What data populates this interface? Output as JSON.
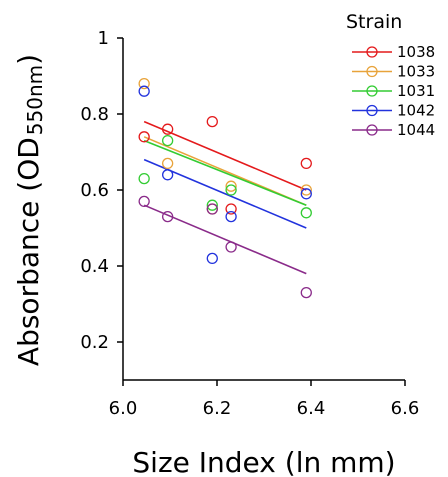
{
  "chart_data": {
    "type": "scatter",
    "xlabel": "Size Index (ln mm)",
    "ylabel_main": "Absorbance (OD",
    "ylabel_sub": "550nm",
    "ylabel_close": ")",
    "xlim": [
      6.0,
      6.6
    ],
    "ylim": [
      0.1,
      1.0
    ],
    "xticks": [
      6.0,
      6.2,
      6.4,
      6.6
    ],
    "xtick_labels": [
      "6.0",
      "6.2",
      "6.4",
      "6.6"
    ],
    "yticks": [
      0.2,
      0.4,
      0.6,
      0.8,
      1.0
    ],
    "ytick_labels": [
      "0.2",
      "0.4",
      "0.6",
      "0.8",
      "1"
    ],
    "grid": false,
    "legend": {
      "title": "Strain",
      "placement": "top-right"
    },
    "series": [
      {
        "name": "1038",
        "color": "#e41a1c",
        "x": [
          6.045,
          6.095,
          6.19,
          6.23,
          6.39
        ],
        "y": [
          0.74,
          0.76,
          0.78,
          0.55,
          0.67
        ],
        "fit": [
          [
            6.045,
            0.78
          ],
          [
            6.39,
            0.6
          ]
        ]
      },
      {
        "name": "1033",
        "color": "#e8a33a",
        "x": [
          6.045,
          6.095,
          6.19,
          6.23,
          6.39
        ],
        "y": [
          0.88,
          0.67,
          0.55,
          0.61,
          0.6
        ],
        "fit": [
          [
            6.045,
            0.74
          ],
          [
            6.39,
            0.56
          ]
        ]
      },
      {
        "name": "1031",
        "color": "#33cc33",
        "x": [
          6.045,
          6.095,
          6.19,
          6.23,
          6.39
        ],
        "y": [
          0.63,
          0.73,
          0.56,
          0.6,
          0.54
        ],
        "fit": [
          [
            6.045,
            0.73
          ],
          [
            6.39,
            0.56
          ]
        ]
      },
      {
        "name": "1042",
        "color": "#2233dd",
        "x": [
          6.045,
          6.095,
          6.19,
          6.23,
          6.39
        ],
        "y": [
          0.86,
          0.64,
          0.42,
          0.53,
          0.59
        ],
        "fit": [
          [
            6.045,
            0.68
          ],
          [
            6.39,
            0.5
          ]
        ]
      },
      {
        "name": "1044",
        "color": "#8a2b8a",
        "x": [
          6.045,
          6.095,
          6.19,
          6.23,
          6.39
        ],
        "y": [
          0.57,
          0.53,
          0.55,
          0.45,
          0.33
        ],
        "fit": [
          [
            6.045,
            0.56
          ],
          [
            6.39,
            0.38
          ]
        ]
      }
    ]
  }
}
